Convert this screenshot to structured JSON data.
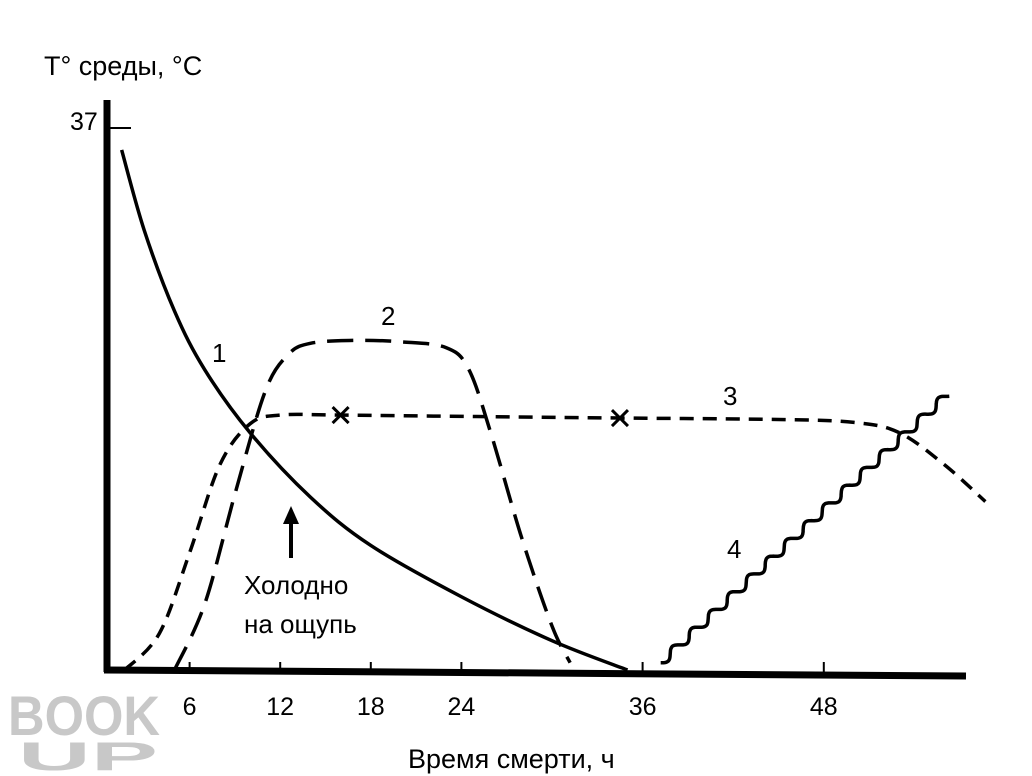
{
  "chart_data": {
    "type": "line",
    "title": "",
    "ylabel": "T° среды, °C",
    "xlabel": "Время смерти, ч",
    "xlim": [
      0,
      57
    ],
    "ylim": [
      0,
      37
    ],
    "x_ticks": [
      "6",
      "12",
      "18",
      "24",
      "36",
      "48"
    ],
    "x_tick_values": [
      6,
      12,
      18,
      24,
      36,
      48
    ],
    "y_ticks": [
      "37"
    ],
    "y_tick_values": [
      37
    ],
    "grid": false,
    "series": [
      {
        "name": "1",
        "style": "solid",
        "x": [
          1.5,
          3,
          5,
          7,
          10,
          14,
          18,
          24,
          30,
          35
        ],
        "y": [
          35.5,
          30,
          24.5,
          20.5,
          16.2,
          11.8,
          8.5,
          5,
          2,
          0
        ]
      },
      {
        "name": "2",
        "style": "long-dash",
        "x": [
          5,
          7,
          9,
          11,
          12.5,
          14,
          17,
          20,
          23,
          24.5,
          26,
          28,
          30,
          31.2
        ],
        "y": [
          0,
          4.5,
          12,
          19,
          21.5,
          22.3,
          22.5,
          22.4,
          22,
          20.5,
          16,
          9,
          3,
          0.5
        ]
      },
      {
        "name": "3",
        "style": "short-dash",
        "x": [
          1.7,
          4,
          6,
          8,
          10,
          12,
          16,
          25,
          34.5,
          45,
          50,
          53,
          56,
          58.7
        ],
        "y": [
          0,
          2.5,
          8,
          14,
          16.8,
          17.4,
          17.4,
          17.3,
          17.2,
          17.1,
          16.9,
          16.2,
          14,
          11.5
        ]
      },
      {
        "name": "4",
        "style": "wavy",
        "x": [
          37.2,
          56.2
        ],
        "y": [
          0.5,
          18.8
        ]
      }
    ],
    "markers": [
      {
        "series": "3",
        "x": 16,
        "y": 17.4,
        "symbol": "x"
      },
      {
        "series": "3",
        "x": 34.5,
        "y": 17.2,
        "symbol": "x"
      }
    ],
    "annotations": [
      {
        "text_lines": [
          "Холодно",
          "на ощупь"
        ],
        "arrow_at_x": 12.6
      }
    ]
  },
  "watermark": {
    "lines": [
      "BOOK",
      "UP"
    ],
    "color": "#c8c8c8"
  }
}
